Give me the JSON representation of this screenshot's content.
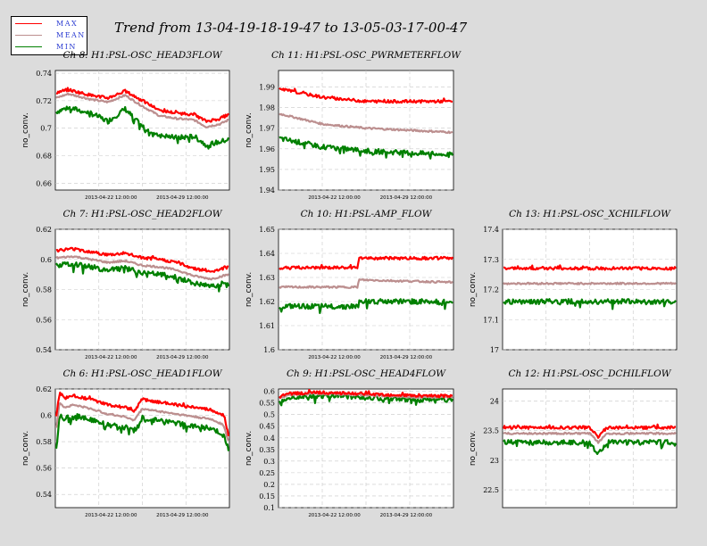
{
  "title": "Trend from 13-04-19-18-19-47 to 13-05-03-17-00-47",
  "legend": [
    {
      "label": "MAX",
      "color": "#ff0000"
    },
    {
      "label": "MEAN",
      "color": "#bc8f8f"
    },
    {
      "label": "MIN",
      "color": "#008000"
    }
  ],
  "colors": {
    "background": "#dcdcdc",
    "plot_background": "#ffffff",
    "grid": "#c8c8c8"
  },
  "chart_data": [
    {
      "type": "line",
      "title": "Ch 8: H1:PSL-OSC_HEAD3FLOW",
      "ylabel": "no_conv.",
      "yticks": [
        "0.74",
        "0.72",
        "0.7",
        "0.68",
        "0.66"
      ],
      "ytick_values": [
        0.74,
        0.72,
        0.7,
        0.68,
        0.66
      ],
      "ylim": [
        0.655,
        0.742
      ],
      "xticks": [
        "2013-04-22 12:00:00",
        "2013-04-29 12:00:00"
      ],
      "x": [
        0.0,
        0.07,
        0.2,
        0.3,
        0.4,
        0.5,
        0.6,
        0.7,
        0.8,
        0.87,
        0.95,
        1.0
      ],
      "series": [
        {
          "name": "MAX",
          "values": [
            0.726,
            0.728,
            0.724,
            0.722,
            0.727,
            0.72,
            0.713,
            0.711,
            0.71,
            0.705,
            0.707,
            0.71
          ]
        },
        {
          "name": "MEAN",
          "values": [
            0.722,
            0.725,
            0.721,
            0.719,
            0.724,
            0.716,
            0.709,
            0.707,
            0.706,
            0.701,
            0.703,
            0.706
          ]
        },
        {
          "name": "MIN",
          "values": [
            0.712,
            0.715,
            0.711,
            0.705,
            0.714,
            0.701,
            0.695,
            0.693,
            0.694,
            0.688,
            0.69,
            0.692
          ]
        }
      ]
    },
    {
      "type": "line",
      "title": "Ch 11: H1:PSL-OSC_PWRMETERFLOW",
      "ylabel": "no_conv.",
      "yticks": [
        "1.99",
        "1.98",
        "1.97",
        "1.96",
        "1.95",
        "1.94"
      ],
      "ytick_values": [
        1.99,
        1.98,
        1.97,
        1.96,
        1.95,
        1.94
      ],
      "ylim": [
        1.94,
        1.998
      ],
      "xticks": [
        "2013-04-22 12:00:00",
        "2013-04-29 12:00:00"
      ],
      "x": [
        0.0,
        0.25,
        0.5,
        0.75,
        1.0
      ],
      "series": [
        {
          "name": "MAX",
          "values": [
            1.989,
            1.985,
            1.983,
            1.983,
            1.983
          ]
        },
        {
          "name": "MEAN",
          "values": [
            1.977,
            1.972,
            1.97,
            1.969,
            1.968
          ]
        },
        {
          "name": "MIN",
          "values": [
            1.965,
            1.961,
            1.959,
            1.958,
            1.957
          ]
        }
      ]
    },
    {
      "type": "line",
      "title": "Ch 7: H1:PSL-OSC_HEAD2FLOW",
      "ylabel": "no_conv.",
      "yticks": [
        "0.62",
        "0.6",
        "0.58",
        "0.56",
        "0.54"
      ],
      "ytick_values": [
        0.62,
        0.6,
        0.58,
        0.56,
        0.54
      ],
      "ylim": [
        0.54,
        0.62
      ],
      "xticks": [
        "2013-04-22 12:00:00",
        "2013-04-29 12:00:00"
      ],
      "x": [
        0.0,
        0.1,
        0.2,
        0.3,
        0.4,
        0.5,
        0.6,
        0.7,
        0.8,
        0.9,
        1.0
      ],
      "series": [
        {
          "name": "MAX",
          "values": [
            0.606,
            0.607,
            0.605,
            0.603,
            0.604,
            0.601,
            0.6,
            0.598,
            0.594,
            0.592,
            0.595
          ]
        },
        {
          "name": "MEAN",
          "values": [
            0.601,
            0.602,
            0.6,
            0.598,
            0.599,
            0.596,
            0.595,
            0.593,
            0.589,
            0.587,
            0.59
          ]
        },
        {
          "name": "MIN",
          "values": [
            0.596,
            0.597,
            0.595,
            0.593,
            0.594,
            0.591,
            0.59,
            0.588,
            0.584,
            0.582,
            0.585
          ]
        }
      ]
    },
    {
      "type": "line",
      "title": "Ch 10: H1:PSL-AMP_FLOW",
      "ylabel": "no_conv.",
      "yticks": [
        "1.65",
        "1.64",
        "1.63",
        "1.62",
        "1.61",
        "1.6"
      ],
      "ytick_values": [
        1.65,
        1.64,
        1.63,
        1.62,
        1.61,
        1.6
      ],
      "ylim": [
        1.6,
        1.65
      ],
      "xticks": [
        "2013-04-22 12:00:00",
        "2013-04-29 12:00:00"
      ],
      "x": [
        0.0,
        0.45,
        0.46,
        1.0
      ],
      "series": [
        {
          "name": "MAX",
          "values": [
            1.634,
            1.634,
            1.638,
            1.638
          ]
        },
        {
          "name": "MEAN",
          "values": [
            1.626,
            1.626,
            1.629,
            1.628
          ]
        },
        {
          "name": "MIN",
          "values": [
            1.618,
            1.618,
            1.62,
            1.62
          ]
        }
      ]
    },
    {
      "type": "line",
      "title": "Ch 13: H1:PSL-OSC_XCHILFLOW",
      "ylabel": "no_conv.",
      "yticks": [
        "17.4",
        "17.3",
        "17.2",
        "17.1",
        "17"
      ],
      "ytick_values": [
        17.4,
        17.3,
        17.2,
        17.1,
        17.0
      ],
      "ylim": [
        17.0,
        17.4
      ],
      "xticks": [],
      "x": [
        0.0,
        1.0
      ],
      "series": [
        {
          "name": "MAX",
          "values": [
            17.27,
            17.27
          ]
        },
        {
          "name": "MEAN",
          "values": [
            17.22,
            17.22
          ]
        },
        {
          "name": "MIN",
          "values": [
            17.16,
            17.16
          ]
        }
      ]
    },
    {
      "type": "line",
      "title": "Ch 6: H1:PSL-OSC_HEAD1FLOW",
      "ylabel": "no_conv.",
      "yticks": [
        "0.62",
        "0.6",
        "0.58",
        "0.56",
        "0.54"
      ],
      "ytick_values": [
        0.62,
        0.6,
        0.58,
        0.56,
        0.54
      ],
      "ylim": [
        0.53,
        0.62
      ],
      "xticks": [
        "2013-04-22 12:00:00",
        "2013-04-29 12:00:00"
      ],
      "x": [
        0.0,
        0.02,
        0.05,
        0.1,
        0.2,
        0.3,
        0.4,
        0.45,
        0.5,
        0.6,
        0.7,
        0.8,
        0.9,
        0.97,
        1.0
      ],
      "series": [
        {
          "name": "MAX",
          "values": [
            0.6,
            0.617,
            0.613,
            0.615,
            0.612,
            0.608,
            0.606,
            0.603,
            0.612,
            0.61,
            0.608,
            0.606,
            0.604,
            0.6,
            0.585
          ]
        },
        {
          "name": "MEAN",
          "values": [
            0.59,
            0.61,
            0.606,
            0.608,
            0.605,
            0.601,
            0.599,
            0.596,
            0.605,
            0.603,
            0.601,
            0.599,
            0.597,
            0.593,
            0.58
          ]
        },
        {
          "name": "MIN",
          "values": [
            0.575,
            0.6,
            0.598,
            0.6,
            0.597,
            0.593,
            0.591,
            0.588,
            0.598,
            0.596,
            0.594,
            0.592,
            0.59,
            0.585,
            0.575
          ]
        }
      ]
    },
    {
      "type": "line",
      "title": "Ch 9: H1:PSL-OSC_HEAD4FLOW",
      "ylabel": "no_conv.",
      "yticks": [
        "0.6",
        "0.55",
        "0.5",
        "0.45",
        "0.4",
        "0.35",
        "0.3",
        "0.25",
        "0.2",
        "0.15",
        "0.1"
      ],
      "ytick_values": [
        0.6,
        0.55,
        0.5,
        0.45,
        0.4,
        0.35,
        0.3,
        0.25,
        0.2,
        0.15,
        0.1
      ],
      "ylim": [
        0.1,
        0.61
      ],
      "xticks": [
        "2013-04-22 12:00:00",
        "2013-04-29 12:00:00"
      ],
      "x": [
        0.0,
        0.05,
        0.2,
        0.4,
        0.6,
        0.8,
        1.0
      ],
      "series": [
        {
          "name": "MAX",
          "values": [
            0.575,
            0.59,
            0.595,
            0.592,
            0.585,
            0.58,
            0.58
          ]
        },
        {
          "name": "MEAN",
          "values": [
            0.57,
            0.585,
            0.59,
            0.587,
            0.58,
            0.575,
            0.575
          ]
        },
        {
          "name": "MIN",
          "values": [
            0.555,
            0.575,
            0.58,
            0.578,
            0.57,
            0.565,
            0.565
          ]
        }
      ]
    },
    {
      "type": "line",
      "title": "Ch 12: H1:PSL-OSC_DCHILFLOW",
      "ylabel": "no_conv.",
      "yticks": [
        "24",
        "23.5",
        "23",
        "22.5"
      ],
      "ytick_values": [
        24.0,
        23.5,
        23.0,
        22.5
      ],
      "ylim": [
        22.2,
        24.2
      ],
      "xticks": [],
      "x": [
        0.0,
        0.5,
        0.55,
        0.6,
        1.0
      ],
      "series": [
        {
          "name": "MAX",
          "values": [
            23.55,
            23.55,
            23.4,
            23.55,
            23.55
          ]
        },
        {
          "name": "MEAN",
          "values": [
            23.45,
            23.45,
            23.3,
            23.45,
            23.45
          ]
        },
        {
          "name": "MIN",
          "values": [
            23.3,
            23.3,
            23.1,
            23.3,
            23.3
          ]
        }
      ]
    }
  ]
}
